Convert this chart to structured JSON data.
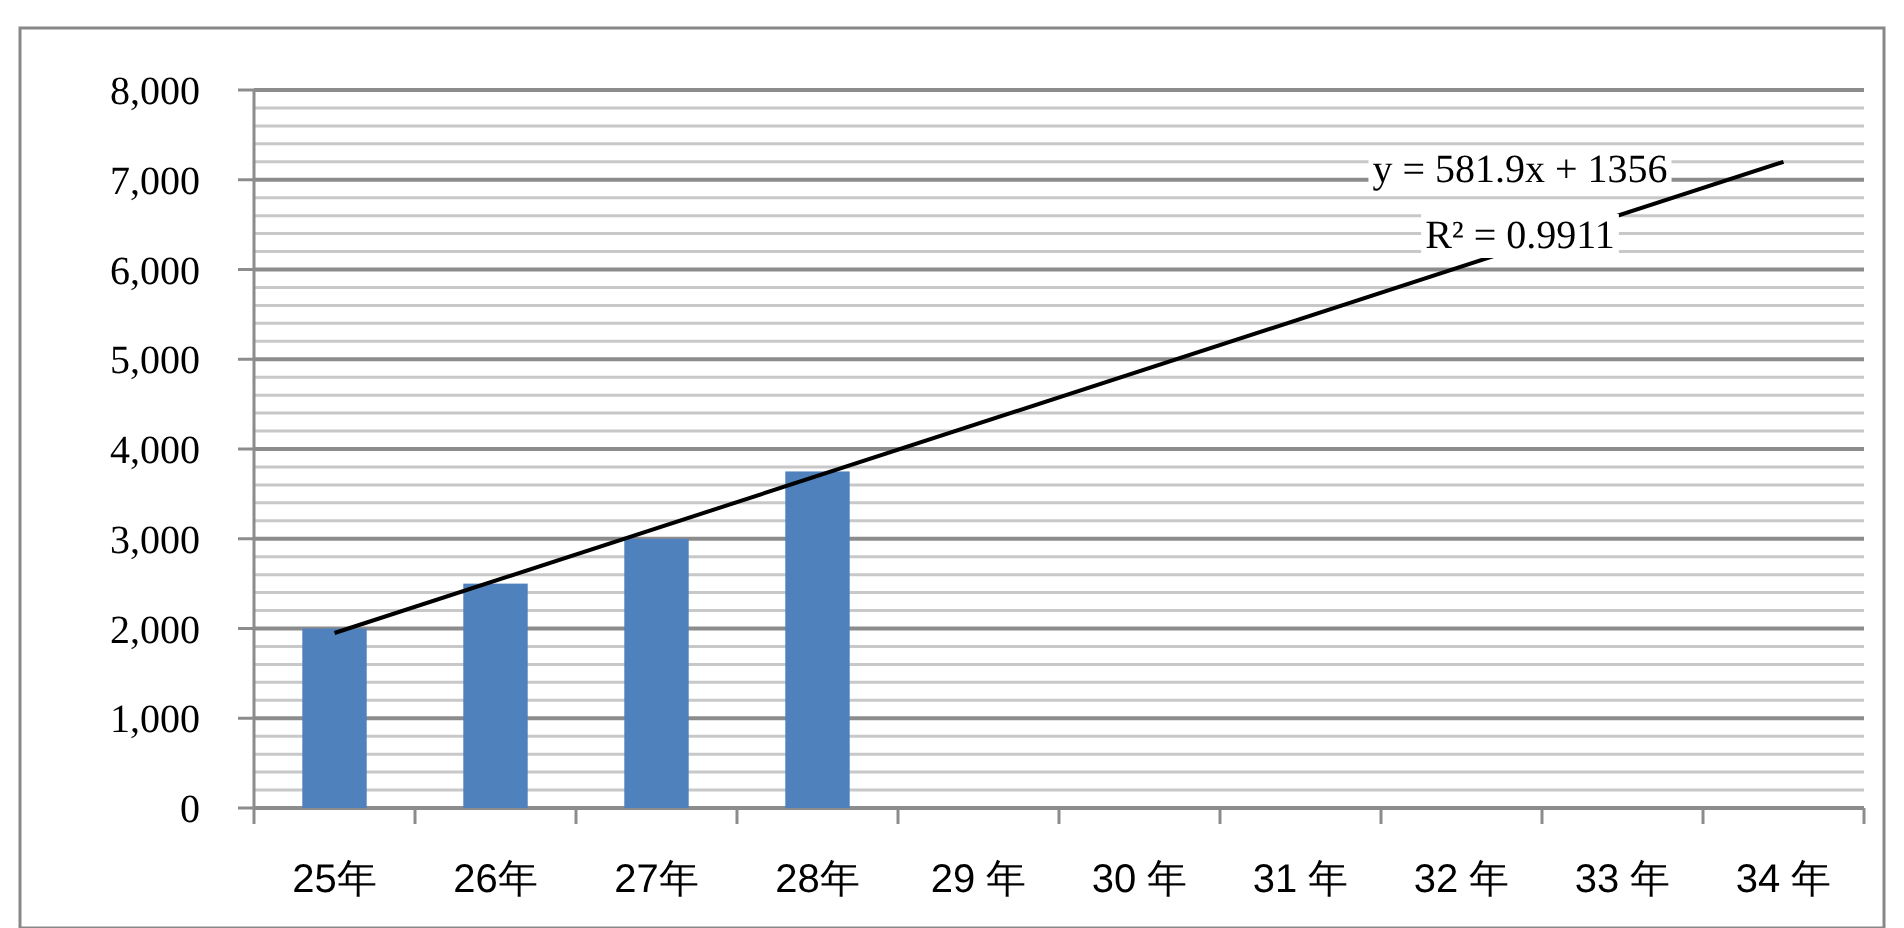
{
  "chart_data": {
    "type": "bar",
    "categories": [
      "25年",
      "26年",
      "27年",
      "28年",
      "29 年",
      "30 年",
      "31 年",
      "32 年",
      "33 年",
      "34 年"
    ],
    "series": [
      {
        "color": "#4f81bd",
        "values": [
          2000,
          2500,
          3000,
          3750,
          null,
          null,
          null,
          null,
          null,
          null
        ]
      },
      {
        "type": "line",
        "color": "#000000",
        "x": [
          "25年",
          "34 年"
        ],
        "values": [
          1950,
          7200
        ]
      }
    ],
    "ylim": [
      0,
      8000
    ],
    "yticks": [
      0,
      {
        "value": 200,
        "label": null
      },
      {
        "value": 400,
        "label": null
      },
      {
        "value": 600,
        "label": null
      },
      {
        "value": 800,
        "label": null
      },
      {
        "value": 1000,
        "label": "1,000"
      },
      {
        "value": 1200,
        "label": null
      },
      {
        "value": 1400,
        "label": null
      },
      {
        "value": 1600,
        "label": null
      },
      {
        "value": 1800,
        "label": null
      },
      {
        "value": 2000,
        "label": "2,000"
      },
      {
        "value": 2200,
        "label": null
      },
      {
        "value": 2400,
        "label": null
      },
      {
        "value": 2600,
        "label": null
      },
      {
        "value": 2800,
        "label": null
      },
      {
        "value": 3000,
        "label": "3,000"
      },
      {
        "value": 3200,
        "label": null
      },
      {
        "value": 3400,
        "label": null
      },
      {
        "value": 3600,
        "label": null
      },
      {
        "value": 3800,
        "label": null
      },
      {
        "value": 4000,
        "label": "4,000"
      },
      {
        "value": 4200,
        "label": null
      },
      {
        "value": 4400,
        "label": null
      },
      {
        "value": 4600,
        "label": null
      },
      {
        "value": 4800,
        "label": null
      },
      {
        "value": 5000,
        "label": "5,000"
      },
      {
        "value": 5200,
        "label": null
      },
      {
        "value": 5400,
        "label": null
      },
      {
        "value": 5600,
        "label": null
      },
      {
        "value": 5800,
        "label": null
      },
      {
        "value": 6000,
        "label": "6,000"
      },
      {
        "value": 6200,
        "label": null
      },
      {
        "value": 6400,
        "label": null
      },
      {
        "value": 6600,
        "label": null
      },
      {
        "value": 6800,
        "label": null
      },
      {
        "value": 7000,
        "label": "7,000"
      },
      {
        "value": 7200,
        "label": null
      },
      {
        "value": 7400,
        "label": null
      },
      {
        "value": 7600,
        "label": null
      },
      {
        "value": 7800,
        "label": null
      },
      {
        "value": 8000,
        "label": "8,000"
      }
    ],
    "grid": "y",
    "annotations": [
      "y = 581.9x + 1356",
      "R² = 0.9911"
    ]
  }
}
